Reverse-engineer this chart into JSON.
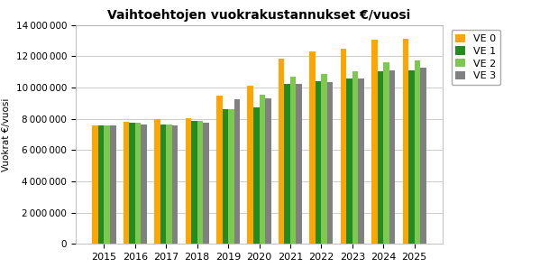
{
  "title": "Vaihtoehtojen vuokrakustannukset €/vuosi",
  "ylabel": "Vuokrat €/vuosi",
  "years": [
    2015,
    2016,
    2017,
    2018,
    2019,
    2020,
    2021,
    2022,
    2023,
    2024,
    2025
  ],
  "series": {
    "VE 0": [
      7600000,
      7800000,
      7950000,
      8050000,
      9450000,
      10100000,
      11850000,
      12300000,
      12500000,
      13050000,
      13100000
    ],
    "VE 1": [
      7600000,
      7750000,
      7650000,
      7850000,
      8600000,
      8750000,
      10250000,
      10400000,
      10550000,
      11050000,
      11100000
    ],
    "VE 2": [
      7600000,
      7750000,
      7650000,
      7850000,
      8600000,
      9550000,
      10700000,
      10850000,
      11050000,
      11600000,
      11700000
    ],
    "VE 3": [
      7600000,
      7650000,
      7600000,
      7750000,
      9250000,
      9300000,
      10200000,
      10350000,
      10550000,
      11100000,
      11250000
    ]
  },
  "colors": {
    "VE 0": "#FFA500",
    "VE 1": "#228B22",
    "VE 2": "#7EC850",
    "VE 3": "#808080"
  },
  "ylim": [
    0,
    14000000
  ],
  "yticks": [
    0,
    2000000,
    4000000,
    6000000,
    8000000,
    10000000,
    12000000,
    14000000
  ],
  "background_color": "#FFFFFF",
  "grid_color": "#CCCCCC",
  "bar_width": 0.19,
  "figsize": [
    5.99,
    3.07
  ],
  "dpi": 100
}
